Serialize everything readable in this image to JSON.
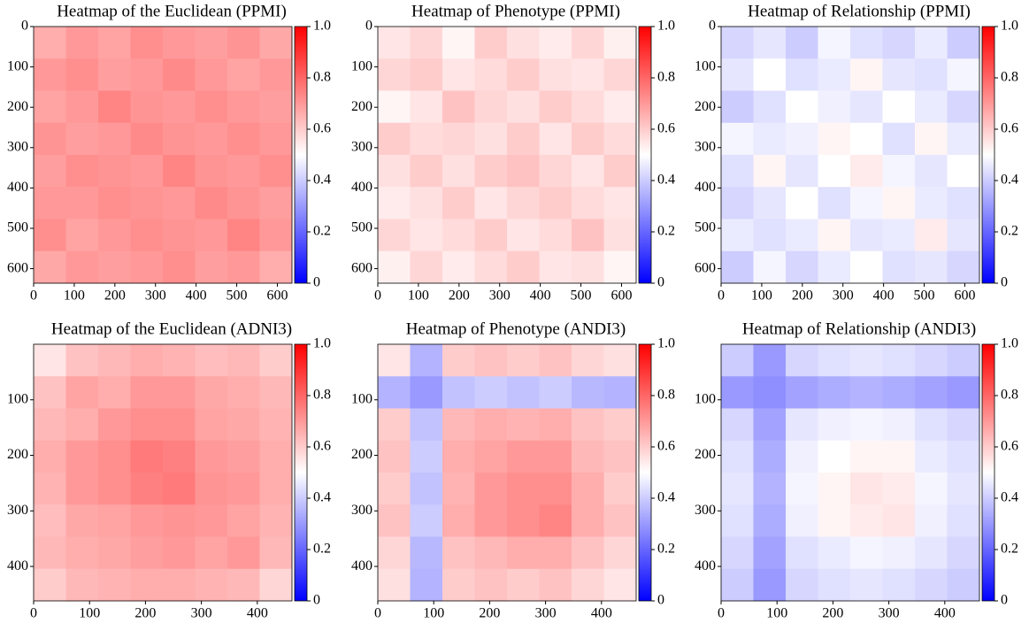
{
  "chart_data": [
    {
      "type": "heatmap",
      "title": "Heatmap of the Euclidean (PPMI)",
      "xlim": [
        0,
        636
      ],
      "ylim": [
        0,
        636
      ],
      "y_inverted": true,
      "xticks": [
        0,
        100,
        200,
        300,
        400,
        500,
        600
      ],
      "yticks": [
        0,
        100,
        200,
        300,
        400,
        500,
        600
      ],
      "zlim": [
        0,
        1
      ],
      "zticks": [
        0,
        0.2,
        0.4,
        0.6,
        0.8,
        {
          "value": 1,
          "label": "1.0"
        }
      ],
      "colorscale": [
        "#0000ff",
        "#ffffff",
        "#ff0000"
      ],
      "z": [
        [
          0.66,
          0.7,
          0.68,
          0.72,
          0.7,
          0.69,
          0.71,
          0.67
        ],
        [
          0.7,
          0.72,
          0.69,
          0.7,
          0.73,
          0.7,
          0.68,
          0.7
        ],
        [
          0.68,
          0.7,
          0.74,
          0.71,
          0.7,
          0.72,
          0.7,
          0.69
        ],
        [
          0.71,
          0.69,
          0.7,
          0.73,
          0.71,
          0.7,
          0.72,
          0.7
        ],
        [
          0.69,
          0.72,
          0.71,
          0.7,
          0.74,
          0.71,
          0.7,
          0.72
        ],
        [
          0.7,
          0.7,
          0.72,
          0.71,
          0.7,
          0.73,
          0.71,
          0.69
        ],
        [
          0.72,
          0.68,
          0.7,
          0.72,
          0.71,
          0.7,
          0.74,
          0.7
        ],
        [
          0.67,
          0.7,
          0.69,
          0.7,
          0.72,
          0.69,
          0.7,
          0.66
        ]
      ]
    },
    {
      "type": "heatmap",
      "title": "Heatmap of Phenotype (PPMI)",
      "xlim": [
        0,
        636
      ],
      "ylim": [
        0,
        636
      ],
      "y_inverted": true,
      "xticks": [
        0,
        100,
        200,
        300,
        400,
        500,
        600
      ],
      "yticks": [
        0,
        100,
        200,
        300,
        400,
        500,
        600
      ],
      "zlim": [
        0,
        1
      ],
      "zticks": [
        0,
        0.2,
        0.4,
        0.6,
        0.8,
        {
          "value": 1,
          "label": "1.0"
        }
      ],
      "colorscale": [
        "#0000ff",
        "#ffffff",
        "#ff0000"
      ],
      "z": [
        [
          0.55,
          0.58,
          0.52,
          0.6,
          0.56,
          0.54,
          0.58,
          0.53
        ],
        [
          0.58,
          0.6,
          0.55,
          0.57,
          0.6,
          0.56,
          0.55,
          0.58
        ],
        [
          0.52,
          0.55,
          0.62,
          0.58,
          0.56,
          0.6,
          0.57,
          0.54
        ],
        [
          0.6,
          0.57,
          0.58,
          0.56,
          0.6,
          0.55,
          0.6,
          0.57
        ],
        [
          0.56,
          0.6,
          0.56,
          0.6,
          0.62,
          0.58,
          0.55,
          0.6
        ],
        [
          0.54,
          0.56,
          0.6,
          0.55,
          0.58,
          0.6,
          0.57,
          0.55
        ],
        [
          0.58,
          0.55,
          0.57,
          0.6,
          0.55,
          0.57,
          0.62,
          0.56
        ],
        [
          0.53,
          0.58,
          0.54,
          0.57,
          0.6,
          0.55,
          0.56,
          0.52
        ]
      ]
    },
    {
      "type": "heatmap",
      "title": "Heatmap of Relationship (PPMI)",
      "xlim": [
        0,
        636
      ],
      "ylim": [
        0,
        636
      ],
      "y_inverted": true,
      "xticks": [
        0,
        100,
        200,
        300,
        400,
        500,
        600
      ],
      "yticks": [
        0,
        100,
        200,
        300,
        400,
        500,
        600
      ],
      "zlim": [
        0,
        1
      ],
      "zticks": [
        0,
        0.2,
        0.4,
        0.6,
        0.8,
        {
          "value": 1,
          "label": "1.0"
        }
      ],
      "colorscale": [
        "#0000ff",
        "#ffffff",
        "#ff0000"
      ],
      "z": [
        [
          0.42,
          0.45,
          0.4,
          0.48,
          0.44,
          0.42,
          0.46,
          0.4
        ],
        [
          0.45,
          0.5,
          0.44,
          0.46,
          0.52,
          0.45,
          0.44,
          0.48
        ],
        [
          0.4,
          0.44,
          0.5,
          0.47,
          0.45,
          0.5,
          0.46,
          0.42
        ],
        [
          0.48,
          0.46,
          0.47,
          0.52,
          0.5,
          0.44,
          0.52,
          0.46
        ],
        [
          0.44,
          0.52,
          0.45,
          0.5,
          0.54,
          0.48,
          0.45,
          0.5
        ],
        [
          0.42,
          0.45,
          0.5,
          0.44,
          0.48,
          0.52,
          0.46,
          0.44
        ],
        [
          0.46,
          0.44,
          0.46,
          0.52,
          0.45,
          0.46,
          0.54,
          0.45
        ],
        [
          0.4,
          0.48,
          0.42,
          0.46,
          0.5,
          0.44,
          0.45,
          0.42
        ]
      ]
    },
    {
      "type": "heatmap",
      "title": "Heatmap of the Euclidean (ADNI3)",
      "xlim": [
        0,
        462
      ],
      "ylim": [
        0,
        462
      ],
      "y_inverted": true,
      "xticks": [
        0,
        100,
        200,
        300,
        400
      ],
      "yticks": [
        100,
        200,
        300,
        400
      ],
      "zlim": [
        0,
        1
      ],
      "zticks": [
        0,
        0.2,
        0.4,
        0.6,
        0.8,
        {
          "value": 1,
          "label": "1.0"
        }
      ],
      "colorscale": [
        "#0000ff",
        "#ffffff",
        "#ff0000"
      ],
      "z": [
        [
          0.55,
          0.62,
          0.64,
          0.66,
          0.65,
          0.63,
          0.64,
          0.6
        ],
        [
          0.62,
          0.68,
          0.66,
          0.7,
          0.7,
          0.67,
          0.66,
          0.64
        ],
        [
          0.64,
          0.66,
          0.7,
          0.72,
          0.72,
          0.68,
          0.67,
          0.65
        ],
        [
          0.66,
          0.7,
          0.72,
          0.76,
          0.75,
          0.7,
          0.69,
          0.66
        ],
        [
          0.65,
          0.7,
          0.72,
          0.75,
          0.76,
          0.71,
          0.7,
          0.66
        ],
        [
          0.63,
          0.67,
          0.68,
          0.7,
          0.71,
          0.7,
          0.68,
          0.65
        ],
        [
          0.64,
          0.66,
          0.67,
          0.69,
          0.7,
          0.68,
          0.7,
          0.64
        ],
        [
          0.6,
          0.64,
          0.65,
          0.66,
          0.66,
          0.65,
          0.64,
          0.58
        ]
      ]
    },
    {
      "type": "heatmap",
      "title": "Heatmap of Phenotype (ANDI3)",
      "xlim": [
        0,
        462
      ],
      "ylim": [
        0,
        462
      ],
      "y_inverted": true,
      "xticks": [
        0,
        100,
        200,
        300,
        400
      ],
      "yticks": [
        100,
        200,
        300,
        400
      ],
      "zlim": [
        0,
        1
      ],
      "zticks": [
        0,
        0.2,
        0.4,
        0.6,
        0.8,
        {
          "value": 1,
          "label": "1.0"
        }
      ],
      "colorscale": [
        "#0000ff",
        "#ffffff",
        "#ff0000"
      ],
      "z": [
        [
          0.55,
          0.35,
          0.6,
          0.62,
          0.6,
          0.62,
          0.58,
          0.56
        ],
        [
          0.35,
          0.3,
          0.38,
          0.4,
          0.38,
          0.4,
          0.36,
          0.35
        ],
        [
          0.6,
          0.38,
          0.64,
          0.66,
          0.65,
          0.66,
          0.62,
          0.6
        ],
        [
          0.62,
          0.4,
          0.66,
          0.68,
          0.7,
          0.7,
          0.64,
          0.62
        ],
        [
          0.6,
          0.38,
          0.65,
          0.7,
          0.72,
          0.72,
          0.66,
          0.6
        ],
        [
          0.62,
          0.4,
          0.66,
          0.7,
          0.72,
          0.74,
          0.66,
          0.62
        ],
        [
          0.58,
          0.36,
          0.62,
          0.64,
          0.66,
          0.66,
          0.62,
          0.58
        ],
        [
          0.56,
          0.35,
          0.6,
          0.62,
          0.6,
          0.62,
          0.58,
          0.55
        ]
      ]
    },
    {
      "type": "heatmap",
      "title": "Heatmap of Relationship (ANDI3)",
      "xlim": [
        0,
        462
      ],
      "ylim": [
        0,
        462
      ],
      "y_inverted": true,
      "xticks": [
        0,
        100,
        200,
        300,
        400
      ],
      "yticks": [
        100,
        200,
        300,
        400
      ],
      "zlim": [
        0,
        1
      ],
      "zticks": [
        0,
        0.2,
        0.4,
        0.6,
        0.8,
        {
          "value": 1,
          "label": "1.0"
        }
      ],
      "colorscale": [
        "#0000ff",
        "#ffffff",
        "#ff0000"
      ],
      "z": [
        [
          0.4,
          0.3,
          0.42,
          0.44,
          0.45,
          0.44,
          0.42,
          0.4
        ],
        [
          0.3,
          0.28,
          0.32,
          0.34,
          0.35,
          0.34,
          0.32,
          0.3
        ],
        [
          0.42,
          0.32,
          0.45,
          0.47,
          0.48,
          0.47,
          0.44,
          0.42
        ],
        [
          0.44,
          0.34,
          0.47,
          0.5,
          0.52,
          0.52,
          0.46,
          0.44
        ],
        [
          0.45,
          0.35,
          0.48,
          0.52,
          0.55,
          0.54,
          0.48,
          0.45
        ],
        [
          0.44,
          0.34,
          0.47,
          0.52,
          0.54,
          0.55,
          0.47,
          0.44
        ],
        [
          0.42,
          0.32,
          0.44,
          0.46,
          0.48,
          0.47,
          0.45,
          0.42
        ],
        [
          0.4,
          0.3,
          0.42,
          0.44,
          0.45,
          0.44,
          0.42,
          0.4
        ]
      ]
    }
  ]
}
